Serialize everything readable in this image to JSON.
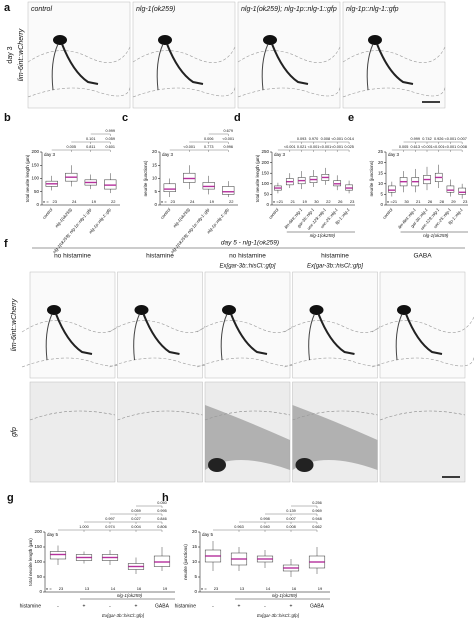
{
  "figure": {
    "panel_a": {
      "label": "a",
      "row_labels": [
        "day 3",
        "lim-6int::wCherry"
      ],
      "columns": [
        "control",
        "nlg-1(ok259)",
        "nlg-1(ok259); nlg-1p::nlg-1::gfp",
        "nlg-1p::nlg-1::gfp"
      ]
    },
    "boxplots": [
      {
        "label": "b",
        "day": "day 3",
        "ylabel": "total neurite length (µm)",
        "ylim": [
          0,
          200
        ],
        "yticks": [
          0,
          50,
          100,
          150,
          200
        ],
        "categories": [
          "control",
          "nlg-1(ok259)",
          "nlg-1(ok259); nlg-1p::nlg-1::gfp",
          "nlg-1p::nlg-1::gfp"
        ],
        "n_label": "n =",
        "n": [
          23,
          24,
          19,
          22
        ],
        "boxes": [
          {
            "low": 55,
            "q1": 70,
            "median": 80,
            "q3": 90,
            "high": 110
          },
          {
            "low": 70,
            "q1": 90,
            "median": 105,
            "q3": 120,
            "high": 150
          },
          {
            "low": 60,
            "q1": 75,
            "median": 85,
            "q3": 95,
            "high": 115
          },
          {
            "low": 45,
            "q1": 60,
            "median": 75,
            "q3": 95,
            "high": 120
          }
        ],
        "pvalues": [
          [
            "0.005",
            "0.811",
            "0.601"
          ],
          [
            "0.101",
            "0.059"
          ],
          [
            "0.999"
          ]
        ]
      },
      {
        "label": "c",
        "day": "day 3",
        "ylabel": "neurite (junctions)",
        "ylim": [
          0,
          20
        ],
        "yticks": [
          0,
          5,
          10,
          15,
          20
        ],
        "categories": [
          "control",
          "nlg-1(ok259)",
          "nlg-1(ok259); nlg-1p::nlg-1::gfp",
          "nlg-1p::nlg-1::gfp"
        ],
        "n_label": "n =",
        "n": [
          23,
          24,
          19,
          22
        ],
        "boxes": [
          {
            "low": 3,
            "q1": 5,
            "median": 6,
            "q3": 8,
            "high": 10
          },
          {
            "low": 6,
            "q1": 8.5,
            "median": 10,
            "q3": 12,
            "high": 15
          },
          {
            "low": 4,
            "q1": 6,
            "median": 7,
            "q3": 8.5,
            "high": 11
          },
          {
            "low": 3,
            "q1": 4,
            "median": 5,
            "q3": 7,
            "high": 9
          }
        ],
        "pvalues": [
          [
            "<0.001",
            "0.773",
            "0.996"
          ],
          [
            "0.006",
            "<0.001"
          ],
          [
            "0.679"
          ]
        ]
      },
      {
        "label": "d",
        "day": "day 3",
        "ylabel": "total neurite length (µm)",
        "ylim": [
          0,
          250
        ],
        "yticks": [
          0,
          50,
          100,
          150,
          200,
          250
        ],
        "categories": [
          "control",
          null,
          "lim-6int::nlg-1",
          "gar-3b::nlg-1",
          "unc-129::nlg-1",
          "unc-25::nlg-1",
          "flp-1::nlg-1"
        ],
        "group_label": "nlg-1(ok259)",
        "n_label": "n =",
        "n": [
          21,
          21,
          19,
          30,
          22,
          26,
          23
        ],
        "boxes": [
          {
            "low": 55,
            "q1": 70,
            "median": 80,
            "q3": 90,
            "high": 105
          },
          {
            "low": 80,
            "q1": 95,
            "median": 110,
            "q3": 125,
            "high": 150
          },
          {
            "low": 75,
            "q1": 100,
            "median": 115,
            "q3": 130,
            "high": 160
          },
          {
            "low": 85,
            "q1": 105,
            "median": 120,
            "q3": 135,
            "high": 165
          },
          {
            "low": 95,
            "q1": 115,
            "median": 130,
            "q3": 145,
            "high": 175
          },
          {
            "low": 70,
            "q1": 90,
            "median": 100,
            "q3": 115,
            "high": 140
          },
          {
            "low": 55,
            "q1": 70,
            "median": 80,
            "q3": 95,
            "high": 115
          }
        ],
        "pvalues": [
          [
            "<0.001",
            "0.021",
            "<0.001",
            "<0.001",
            "<0.001",
            "0.025"
          ],
          [
            "0.093",
            "0.970",
            "0.008",
            "<0.001",
            "0.014"
          ]
        ]
      },
      {
        "label": "e",
        "day": "day 3",
        "ylabel": "neurite (junctions)",
        "ylim": [
          0,
          25
        ],
        "yticks": [
          0,
          5,
          10,
          15,
          20,
          25
        ],
        "categories": [
          "control",
          null,
          "lim-6int::nlg-1",
          "gar-3b::nlg-1",
          "unc-129::nlg-1",
          "unc-25::nlg-1",
          "flp-1::nlg-1"
        ],
        "group_label": "nlg-1(ok259)",
        "n_label": "n =",
        "n": [
          21,
          30,
          21,
          26,
          28,
          29,
          23
        ],
        "boxes": [
          {
            "low": 4,
            "q1": 6,
            "median": 7,
            "q3": 9,
            "high": 11
          },
          {
            "low": 6,
            "q1": 9,
            "median": 11,
            "q3": 13,
            "high": 16
          },
          {
            "low": 6,
            "q1": 9,
            "median": 11,
            "q3": 13,
            "high": 17
          },
          {
            "low": 7,
            "q1": 10,
            "median": 12,
            "q3": 14,
            "high": 18
          },
          {
            "low": 8,
            "q1": 11,
            "median": 13,
            "q3": 15,
            "high": 19
          },
          {
            "low": 4,
            "q1": 6,
            "median": 7,
            "q3": 9,
            "high": 12
          },
          {
            "low": 3,
            "q1": 5,
            "median": 6,
            "q3": 8,
            "high": 10
          }
        ],
        "pvalues": [
          [
            "0.005",
            "0.613",
            "<0.001",
            "<0.001",
            "<0.001",
            "0.008"
          ],
          [
            "0.999",
            "0.742",
            "0.926",
            "<0.001",
            "0.007"
          ]
        ]
      },
      {
        "label": "g",
        "day": "day 5",
        "ylabel": "total neurite length (µm)",
        "ylim": [
          0,
          200
        ],
        "yticks": [
          0,
          50,
          100,
          150,
          200
        ],
        "categories": [
          "-",
          "+",
          "-",
          "+",
          "GABA"
        ],
        "row_label": "histamine",
        "group_label": "nlg-1(ok259)",
        "ex_label": "Ex[gar-3b::hisCl::gfp]",
        "n_label": "n =",
        "n": [
          23,
          13,
          14,
          16,
          19
        ],
        "boxes": [
          {
            "low": 90,
            "q1": 110,
            "median": 125,
            "q3": 135,
            "high": 155
          },
          {
            "low": 95,
            "q1": 105,
            "median": 115,
            "q3": 125,
            "high": 135
          },
          {
            "low": 90,
            "q1": 105,
            "median": 115,
            "q3": 125,
            "high": 140
          },
          {
            "low": 60,
            "q1": 75,
            "median": 85,
            "q3": 95,
            "high": 115
          },
          {
            "low": 70,
            "q1": 85,
            "median": 100,
            "q3": 120,
            "high": 150
          }
        ],
        "pvalues": [
          [
            "1.000",
            "0.974",
            "0.004",
            "0.806"
          ],
          [
            "0.997",
            "0.027",
            "0.846"
          ],
          [
            "0.059",
            "0.995"
          ],
          [
            "0.050"
          ]
        ]
      },
      {
        "label": "h",
        "day": "day 5",
        "ylabel": "neurite (junctions)",
        "ylim": [
          0,
          20
        ],
        "yticks": [
          0,
          5,
          10,
          15,
          20
        ],
        "categories": [
          "-",
          "+",
          "-",
          "+",
          "GABA"
        ],
        "row_label": "histamine",
        "group_label": "nlg-1(ok259)",
        "ex_label": "Ex[gar-3b::hisCl::gfp]",
        "n_label": "n =",
        "n": [
          23,
          13,
          14,
          16,
          19
        ],
        "boxes": [
          {
            "low": 7,
            "q1": 10,
            "median": 12,
            "q3": 14,
            "high": 17
          },
          {
            "low": 7,
            "q1": 9,
            "median": 11,
            "q3": 13,
            "high": 15
          },
          {
            "low": 8,
            "q1": 10,
            "median": 11,
            "q3": 12,
            "high": 14
          },
          {
            "low": 5,
            "q1": 7,
            "median": 8,
            "q3": 9,
            "high": 11
          },
          {
            "low": 6,
            "q1": 8,
            "median": 10,
            "q3": 12,
            "high": 15
          }
        ],
        "pvalues": [
          [
            "0.963",
            "0.940",
            "0.008",
            "0.662"
          ],
          [
            "0.998",
            "0.007",
            "0.948"
          ],
          [
            "0.139",
            "0.969"
          ],
          [
            "0.256"
          ]
        ]
      }
    ],
    "panel_f": {
      "label": "f",
      "title": "day 5 - nlg-1(ok259)",
      "row_labels": [
        "lim-6int::wCherry",
        "gfp"
      ],
      "columns": [
        {
          "title": "no histamine"
        },
        {
          "title": "histamine"
        },
        {
          "title": "no histamine",
          "subtitle": "Ex[gar-3b::hisCl::gfp]"
        },
        {
          "title": "histamine",
          "subtitle": "Ex[gar-3b::hisCl::gfp]"
        },
        {
          "title": "GABA"
        }
      ]
    }
  }
}
